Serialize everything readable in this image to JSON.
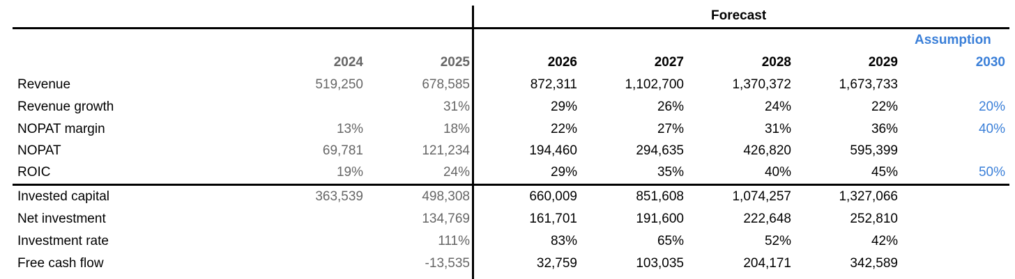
{
  "header": {
    "forecast_label": "Forecast",
    "assumption_label": "Assumption",
    "years": [
      "2024",
      "2025",
      "2026",
      "2027",
      "2028",
      "2029",
      "2030"
    ]
  },
  "rows": [
    {
      "label": "Revenue",
      "values": [
        "519,250",
        "678,585",
        "872,311",
        "1,102,700",
        "1,370,372",
        "1,673,733",
        ""
      ]
    },
    {
      "label": "Revenue growth",
      "values": [
        "",
        "31%",
        "29%",
        "26%",
        "24%",
        "22%",
        "20%"
      ]
    },
    {
      "label": "NOPAT margin",
      "values": [
        "13%",
        "18%",
        "22%",
        "27%",
        "31%",
        "36%",
        "40%"
      ]
    },
    {
      "label": "NOPAT",
      "values": [
        "69,781",
        "121,234",
        "194,460",
        "294,635",
        "426,820",
        "595,399",
        ""
      ]
    },
    {
      "label": "ROIC",
      "values": [
        "19%",
        "24%",
        "29%",
        "35%",
        "40%",
        "45%",
        "50%"
      ]
    },
    {
      "label": "Invested capital",
      "values": [
        "363,539",
        "498,308",
        "660,009",
        "851,608",
        "1,074,257",
        "1,327,066",
        ""
      ]
    },
    {
      "label": "Net investment",
      "values": [
        "",
        "134,769",
        "161,701",
        "191,600",
        "222,648",
        "252,810",
        ""
      ]
    },
    {
      "label": "Investment rate",
      "values": [
        "",
        "111%",
        "83%",
        "65%",
        "52%",
        "42%",
        ""
      ]
    },
    {
      "label": "Free cash flow",
      "values": [
        "",
        "-13,535",
        "32,759",
        "103,035",
        "204,171",
        "342,589",
        ""
      ]
    }
  ],
  "colors": {
    "historical_text": "#666666",
    "forecast_text": "#000000",
    "assumption_text": "#3a7fd8",
    "rule_lines": "#000000"
  }
}
